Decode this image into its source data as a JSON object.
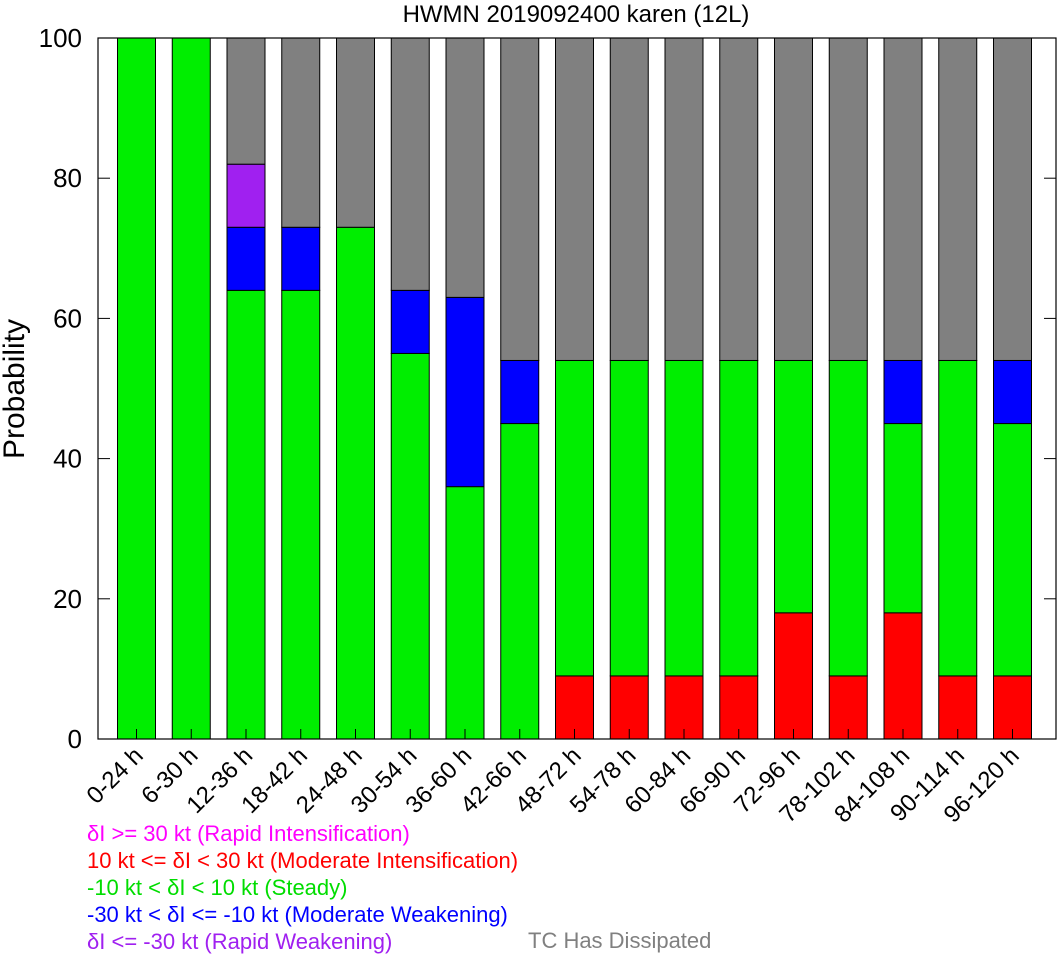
{
  "chart_data": {
    "type": "bar",
    "stacked": true,
    "title": "HWMN 2019092400 karen (12L)",
    "ylabel": "Probability",
    "ylim": [
      0,
      100
    ],
    "yticks": [
      0,
      20,
      40,
      60,
      80,
      100
    ],
    "categories": [
      "0-24 h",
      "6-30 h",
      "12-36 h",
      "18-42 h",
      "24-48 h",
      "30-54 h",
      "36-60 h",
      "42-66 h",
      "48-72 h",
      "54-78 h",
      "60-84 h",
      "66-90 h",
      "72-96 h",
      "78-102 h",
      "84-108 h",
      "90-114 h",
      "96-120 h"
    ],
    "series": [
      {
        "key": "ri",
        "color": "#ff00ff",
        "values": [
          0,
          0,
          0,
          0,
          0,
          0,
          0,
          0,
          0,
          0,
          0,
          0,
          0,
          0,
          0,
          0,
          0
        ]
      },
      {
        "key": "mi",
        "color": "#ff0000",
        "values": [
          0,
          0,
          0,
          0,
          0,
          0,
          0,
          0,
          9,
          9,
          9,
          9,
          18,
          9,
          18,
          9,
          9
        ]
      },
      {
        "key": "steady",
        "color": "#00ee00",
        "values": [
          100,
          100,
          64,
          64,
          73,
          55,
          36,
          45,
          45,
          45,
          45,
          45,
          36,
          45,
          27,
          45,
          36
        ]
      },
      {
        "key": "mw",
        "color": "#0000ff",
        "values": [
          0,
          0,
          9,
          9,
          0,
          9,
          27,
          9,
          0,
          0,
          0,
          0,
          0,
          0,
          9,
          0,
          9
        ]
      },
      {
        "key": "rw",
        "color": "#a020f0",
        "values": [
          0,
          0,
          9,
          0,
          0,
          0,
          0,
          0,
          0,
          0,
          0,
          0,
          0,
          0,
          0,
          0,
          0
        ]
      },
      {
        "key": "dissipated",
        "color": "#808080",
        "values": [
          0,
          0,
          18,
          27,
          27,
          36,
          37,
          46,
          46,
          46,
          46,
          46,
          46,
          46,
          46,
          46,
          46
        ]
      }
    ],
    "legend": [
      {
        "text": "δI >= 30 kt (Rapid Intensification)",
        "color": "#ff00ff"
      },
      {
        "text": "10 kt <= δI < 30 kt (Moderate Intensification)",
        "color": "#ff0000"
      },
      {
        "text": "-10 kt < δI < 10 kt (Steady)",
        "color": "#00dd00"
      },
      {
        "text": "-30 kt < δI <= -10 kt (Moderate Weakening)",
        "color": "#0000ff"
      },
      {
        "text": "δI <= -30 kt (Rapid Weakening)",
        "color": "#a020f0"
      },
      {
        "text": "TC Has Dissipated",
        "color": "#808080"
      }
    ]
  }
}
